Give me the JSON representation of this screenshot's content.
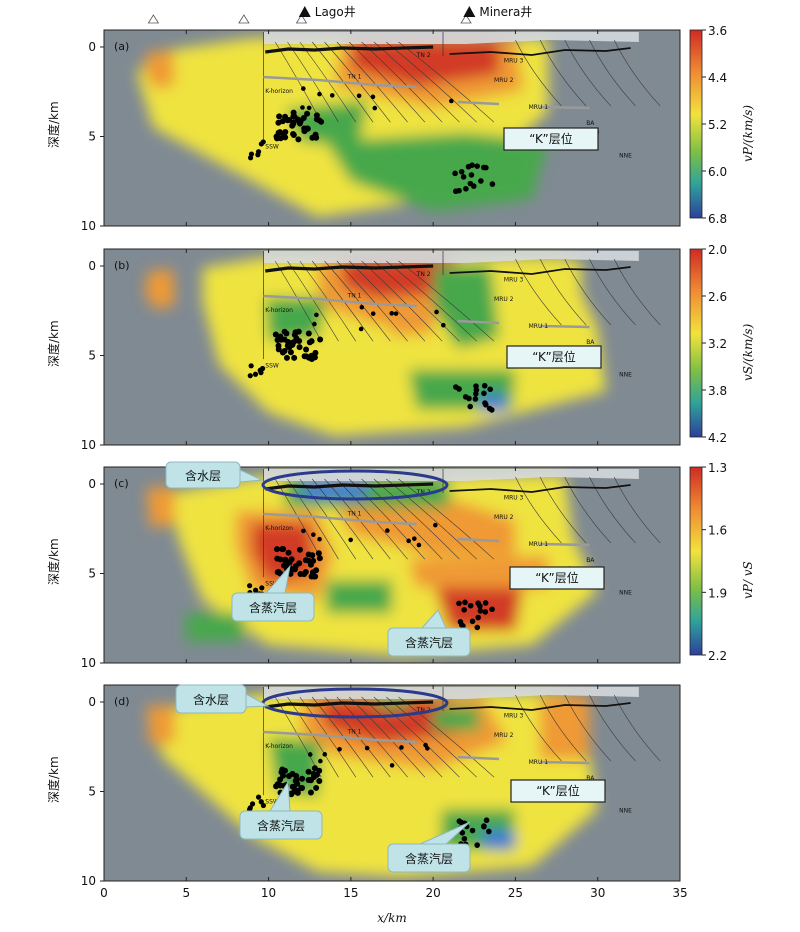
{
  "wells": [
    {
      "name": "Lago井",
      "x": 12.2
    },
    {
      "name": "Minera井",
      "x": 22.2
    }
  ],
  "stations_x": [
    3.0,
    8.5,
    12.0,
    22.0
  ],
  "x_axis": {
    "label": "x/km",
    "ticks": [
      "0",
      "5",
      "10",
      "15",
      "20",
      "25",
      "30",
      "35"
    ],
    "range": [
      0,
      35
    ]
  },
  "y_axis_label": "深度/km",
  "colors": {
    "water_blue": "#3b79d8",
    "steam_green": "#46a84c",
    "slow_red": "#d23a28",
    "mid_yellow": "#efe33f",
    "orange": "#ef9a35",
    "nodata_gray": "#808a93",
    "callout_fill": "#bfe3e6",
    "ellipse": "#2b3a8c",
    "k_box": "#e6f6f7"
  },
  "chart_data": [
    {
      "type": "heatmap",
      "panel": "(a)",
      "xlabel": "x/km",
      "ylabel": "深度/km",
      "xlim": [
        0,
        35
      ],
      "ylim": [
        10,
        -1
      ],
      "y_ticks": [
        "0",
        "5",
        "10"
      ],
      "colorbar": {
        "label": "vP/(km/s)",
        "ticks": [
          "3.6",
          "4.4",
          "5.2",
          "6.0",
          "6.8"
        ],
        "range": [
          3.6,
          6.8
        ],
        "scheme": "red-yellow-green-blue"
      },
      "annotations": [
        {
          "text": "“K”层位"
        }
      ],
      "cross_section_labels": [
        "TN 2",
        "TN 1",
        "MRU 3",
        "MRU 2",
        "MRU 1",
        "Shear Zone",
        "SSW",
        "NNE",
        "BA",
        "K-horizon"
      ]
    },
    {
      "type": "heatmap",
      "panel": "(b)",
      "xlabel": "x/km",
      "ylabel": "深度/km",
      "xlim": [
        0,
        35
      ],
      "ylim": [
        10,
        -1
      ],
      "y_ticks": [
        "0",
        "5",
        "10"
      ],
      "colorbar": {
        "label": "vS/(km/s)",
        "ticks": [
          "2.0",
          "2.6",
          "3.2",
          "3.8",
          "4.2"
        ],
        "range": [
          2.0,
          4.2
        ],
        "scheme": "red-yellow-green-blue"
      },
      "annotations": [
        {
          "text": "“K”层位"
        }
      ],
      "cross_section_labels": [
        "TN 2",
        "TN 1",
        "MRU 3",
        "MRU 2",
        "MRU 1",
        "Shear Zone",
        "SSW",
        "NNE",
        "BA",
        "K-horizon"
      ]
    },
    {
      "type": "heatmap",
      "panel": "(c)",
      "xlabel": "x/km",
      "ylabel": "深度/km",
      "xlim": [
        0,
        35
      ],
      "ylim": [
        10,
        -1
      ],
      "y_ticks": [
        "0",
        "5",
        "10"
      ],
      "colorbar": {
        "label": "vP/ vS",
        "ticks": [
          "1.3",
          "1.6",
          "1.9",
          "2.2"
        ],
        "range": [
          1.3,
          2.2
        ],
        "scheme": "red-yellow-green-blue"
      },
      "annotations": [
        {
          "text": "含水层"
        },
        {
          "text": "含蒸汽层"
        },
        {
          "text": "含蒸汽层"
        },
        {
          "text": "“K”层位"
        }
      ],
      "cross_section_labels": [
        "TN 2",
        "TN 1",
        "MRU 3",
        "MRU 2",
        "MRU 1",
        "Shear Zone",
        "SSW",
        "NNE",
        "BA",
        "K-horizon"
      ]
    },
    {
      "type": "heatmap",
      "panel": "(d)",
      "xlabel": "x/km",
      "ylabel": "深度/km",
      "xlim": [
        0,
        35
      ],
      "ylim": [
        10,
        -1
      ],
      "y_ticks": [
        "0",
        "5",
        "10"
      ],
      "annotations": [
        {
          "text": "含水层"
        },
        {
          "text": "含蒸汽层"
        },
        {
          "text": "含蒸汽层"
        },
        {
          "text": "“K”层位"
        }
      ],
      "cross_section_labels": [
        "TN 2",
        "TN 1",
        "MRU 3",
        "MRU 2",
        "MRU 1",
        "Shear Zone",
        "SSW",
        "NNE",
        "BA",
        "K-horizon"
      ]
    }
  ]
}
